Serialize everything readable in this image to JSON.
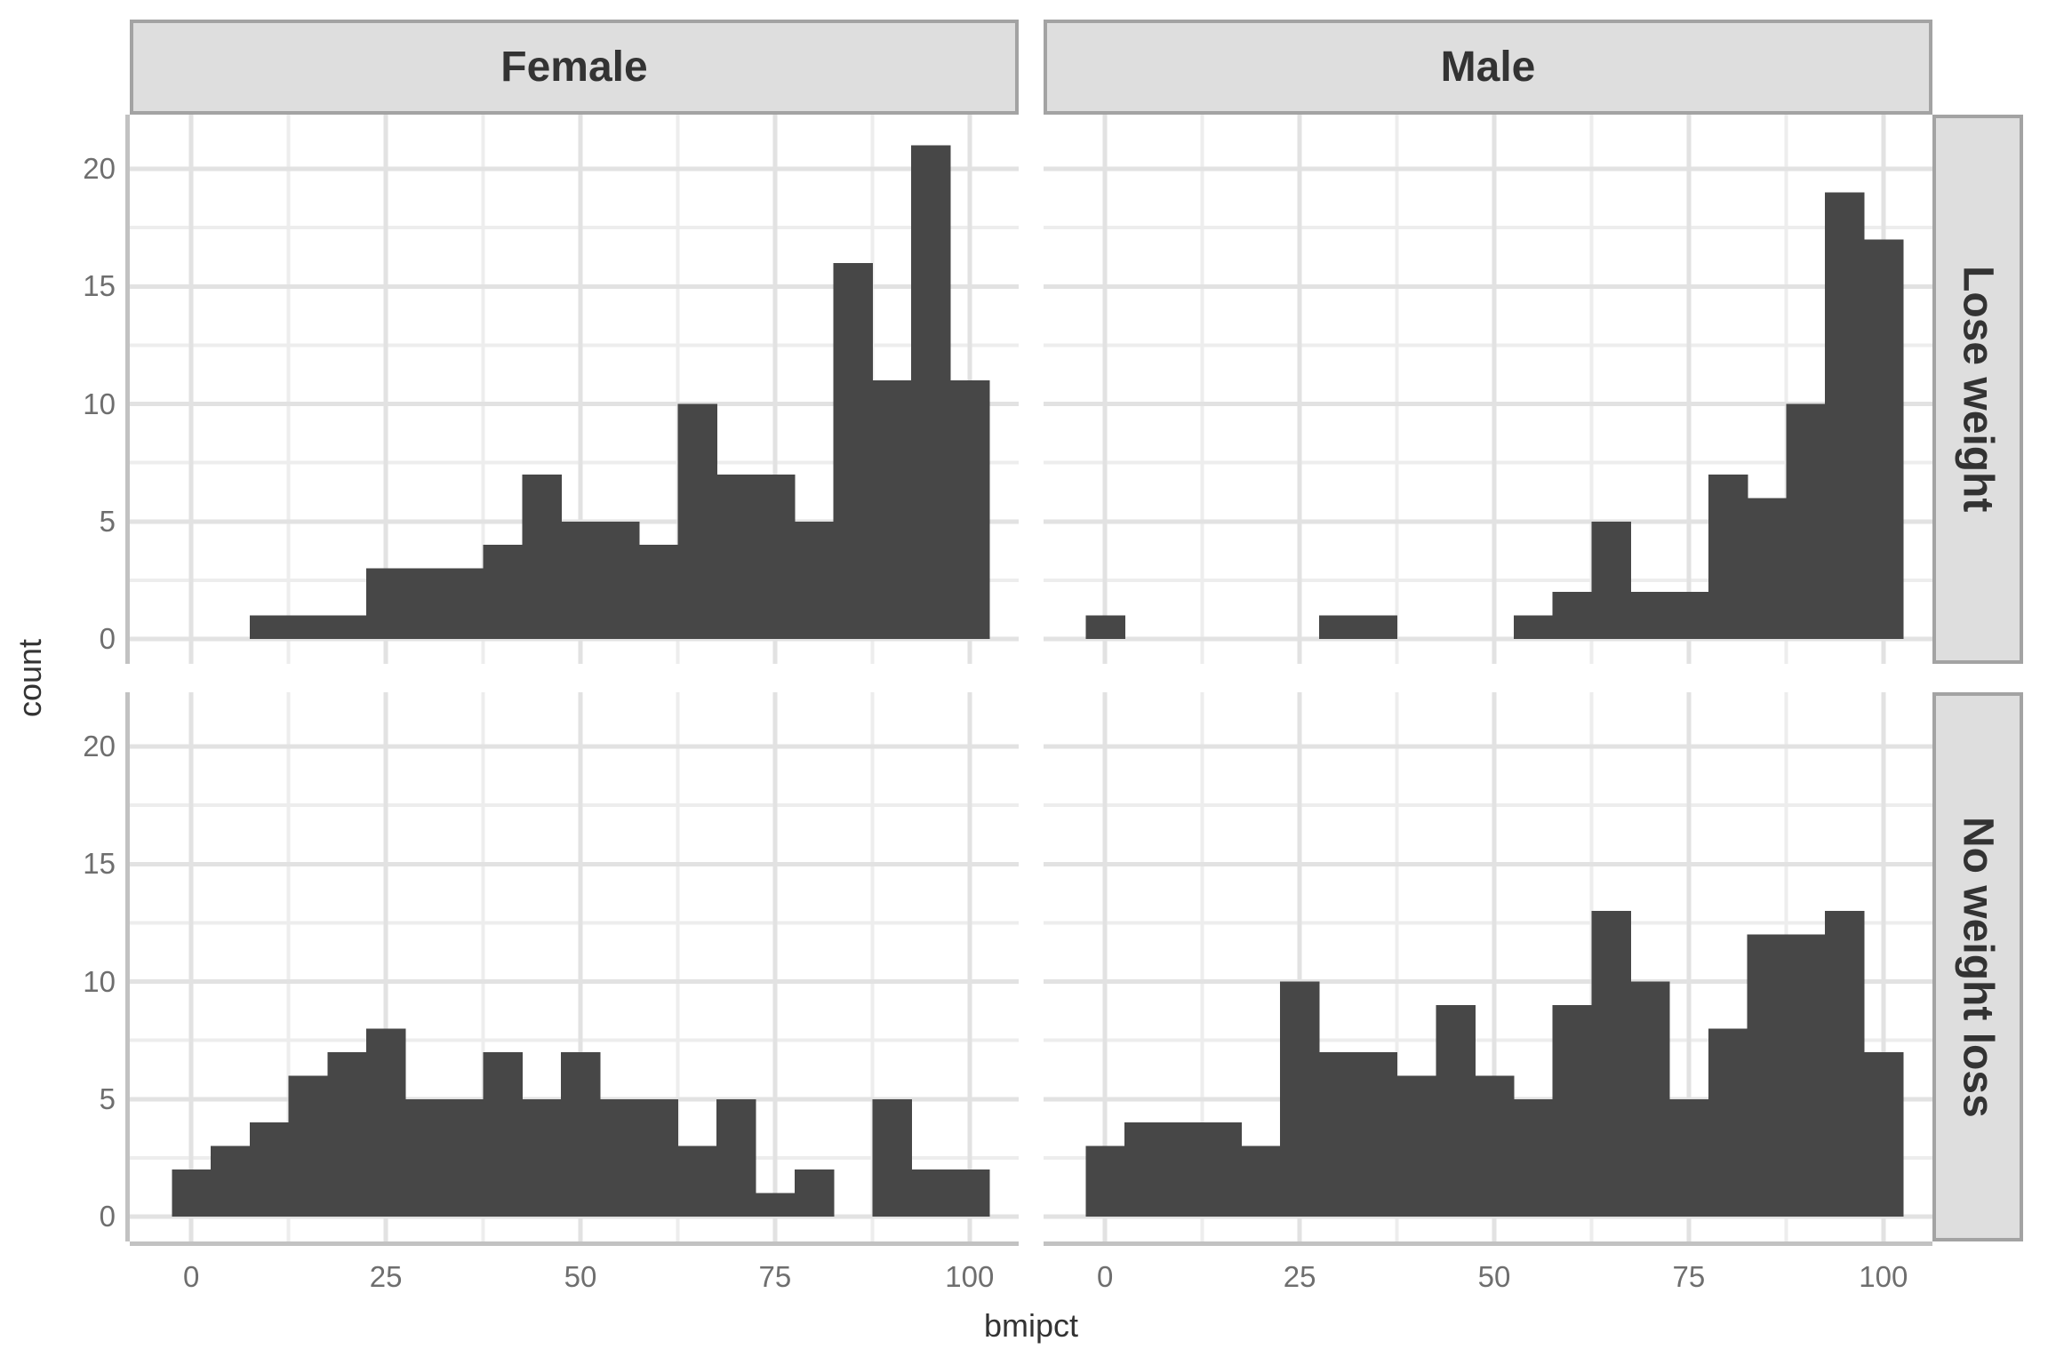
{
  "figure": {
    "xlabel": "bmipct",
    "ylabel": "count",
    "col_facets": [
      "Female",
      "Male"
    ],
    "row_facets": [
      "Lose weight",
      "No weight loss"
    ]
  },
  "colors": {
    "bar": "#474747",
    "strip_bg": "#DEDEDE",
    "strip_border": "#A3A3A3",
    "grid_major": "#E2E2E2",
    "grid_minor": "#EDEDED",
    "axis_line": "#C2C2C2",
    "tick_label": "#6E6E6E",
    "title": "#333333",
    "panel_bg": "#FFFFFF"
  },
  "chart_data": {
    "type": "bar",
    "subtype": "faceted-histogram",
    "title": "",
    "xlabel": "bmipct",
    "ylabel": "count",
    "bin_width": 5,
    "bin_centers": [
      0,
      5,
      10,
      15,
      20,
      25,
      30,
      35,
      40,
      45,
      50,
      55,
      60,
      65,
      70,
      75,
      80,
      85,
      90,
      95,
      100
    ],
    "x_ticks": [
      0,
      25,
      50,
      75,
      100
    ],
    "y_ticks": [
      0,
      5,
      10,
      15,
      20
    ],
    "x_minor": [
      12.5,
      37.5,
      62.5,
      87.5
    ],
    "y_minor": [
      2.5,
      7.5,
      12.5,
      17.5,
      22.5
    ],
    "xlim": [
      -7.9,
      106.3
    ],
    "ylim": [
      -1.06,
      22.3
    ],
    "grid": "on",
    "legend": "none",
    "panels": [
      {
        "col": "Female",
        "row": "Lose weight",
        "counts": [
          0,
          0,
          1,
          1,
          1,
          3,
          3,
          3,
          4,
          7,
          5,
          5,
          4,
          10,
          7,
          7,
          5,
          16,
          11,
          21,
          11
        ]
      },
      {
        "col": "Male",
        "row": "Lose weight",
        "counts": [
          1,
          0,
          0,
          0,
          0,
          0,
          1,
          1,
          0,
          0,
          0,
          1,
          2,
          5,
          2,
          2,
          7,
          6,
          10,
          19,
          17
        ]
      },
      {
        "col": "Female",
        "row": "No weight loss",
        "counts": [
          2,
          3,
          4,
          6,
          7,
          8,
          5,
          5,
          7,
          5,
          7,
          5,
          5,
          3,
          5,
          1,
          2,
          0,
          5,
          2,
          2
        ]
      },
      {
        "col": "Male",
        "row": "No weight loss",
        "counts": [
          3,
          4,
          4,
          4,
          3,
          10,
          7,
          7,
          6,
          9,
          6,
          5,
          9,
          13,
          10,
          5,
          8,
          12,
          12,
          13,
          7
        ]
      }
    ]
  }
}
